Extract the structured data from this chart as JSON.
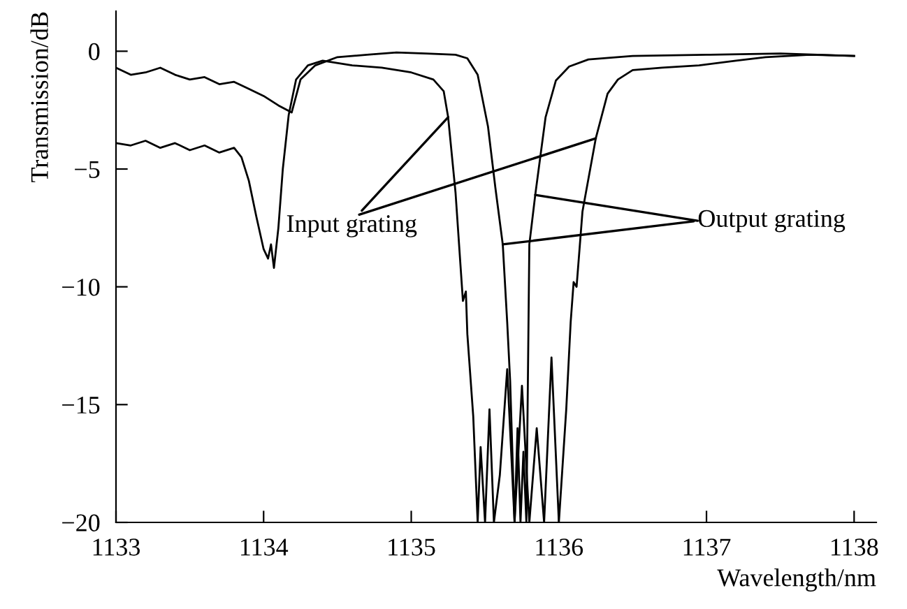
{
  "chart_data": {
    "type": "line",
    "xlabel": "Wavelength/nm",
    "ylabel": "Transmission/dB",
    "x": [
      1133.0,
      1133.1,
      1133.2,
      1133.3,
      1133.4,
      1133.5,
      1133.6,
      1133.7,
      1133.8,
      1133.85,
      1133.9,
      1133.95,
      1134.0,
      1134.03,
      1134.05,
      1134.07,
      1134.1,
      1134.13,
      1134.17,
      1134.22,
      1134.3,
      1134.4,
      1134.6,
      1134.8,
      1135.0,
      1135.15,
      1135.22,
      1135.25,
      1135.3,
      1135.35,
      1135.37,
      1135.38,
      1135.42,
      1135.45,
      1135.47,
      1135.5,
      1135.53,
      1135.56,
      1135.6,
      1135.65,
      1135.7,
      1135.75,
      1135.8,
      1135.85,
      1135.9,
      1135.95,
      1136.0,
      1136.05,
      1136.08,
      1136.1,
      1136.12,
      1136.16,
      1136.25,
      1136.33,
      1136.4,
      1136.5,
      1136.7,
      1136.95,
      1137.2,
      1137.4,
      1137.7,
      1138.0
    ],
    "series": [
      {
        "color": "#000000",
        "values": [
          -3.9,
          -4.0,
          -3.8,
          -4.1,
          -3.9,
          -4.2,
          -4.0,
          -4.3,
          -4.1,
          -4.5,
          -5.5,
          -7.0,
          -8.4,
          -8.8,
          -8.2,
          -9.2,
          -7.5,
          -5.0,
          -2.7,
          -1.2,
          -0.6,
          -0.4,
          -0.6,
          -0.7,
          -0.9,
          -1.2,
          -1.7,
          -2.8,
          -6.0,
          -10.6,
          -10.2,
          -12.0,
          -15.5,
          -20,
          -16.8,
          -20,
          -15.2,
          -20,
          -18,
          -13.5,
          -20,
          -14.2,
          -20,
          -16,
          -20,
          -13.0,
          -20,
          -15.2,
          -11.5,
          -9.8,
          -10.0,
          -6.8,
          -3.7,
          -1.8,
          -1.2,
          -0.8,
          -0.7,
          -0.6,
          -0.4,
          -0.25,
          -0.15,
          -0.2
        ]
      },
      {
        "color": "#000000",
        "x": [
          1133.0,
          1133.1,
          1133.2,
          1133.3,
          1133.4,
          1133.5,
          1133.6,
          1133.7,
          1133.8,
          1133.9,
          1134.0,
          1134.1,
          1134.19,
          1134.25,
          1134.35,
          1134.5,
          1134.7,
          1134.9,
          1135.1,
          1135.3,
          1135.38,
          1135.45,
          1135.52,
          1135.57,
          1135.62,
          1135.65,
          1135.67,
          1135.7,
          1135.72,
          1135.74,
          1135.76,
          1135.78,
          1135.8,
          1135.84,
          1135.91,
          1135.98,
          1136.07,
          1136.2,
          1136.5,
          1137.0,
          1137.5,
          1138.0
        ],
        "values": [
          -0.7,
          -1.0,
          -0.9,
          -0.7,
          -1.0,
          -1.2,
          -1.1,
          -1.4,
          -1.3,
          -1.6,
          -1.9,
          -2.3,
          -2.6,
          -1.2,
          -0.6,
          -0.25,
          -0.15,
          -0.05,
          -0.1,
          -0.15,
          -0.3,
          -1.0,
          -3.2,
          -5.8,
          -8.2,
          -11.5,
          -14,
          -20,
          -16,
          -20,
          -17,
          -20,
          -8.2,
          -6.1,
          -2.8,
          -1.24,
          -0.65,
          -0.35,
          -0.2,
          -0.15,
          -0.1,
          -0.2
        ]
      }
    ],
    "xlim": [
      1133,
      1138.15
    ],
    "ylim": [
      -20,
      1.7
    ],
    "xticks": [
      1133,
      1134,
      1135,
      1136,
      1137,
      1138
    ],
    "yticks": [
      {
        "value": -20,
        "label": "−20"
      },
      {
        "value": -15,
        "label": "−15"
      },
      {
        "value": -10,
        "label": "−10"
      },
      {
        "value": -5,
        "label": "−5"
      },
      0
    ],
    "annotations": [
      {
        "text": "Input grating",
        "x": 1135.25,
        "y": -2.8
      },
      {
        "text": "Output grating",
        "x": 1135.62,
        "y": -8.2
      }
    ]
  }
}
